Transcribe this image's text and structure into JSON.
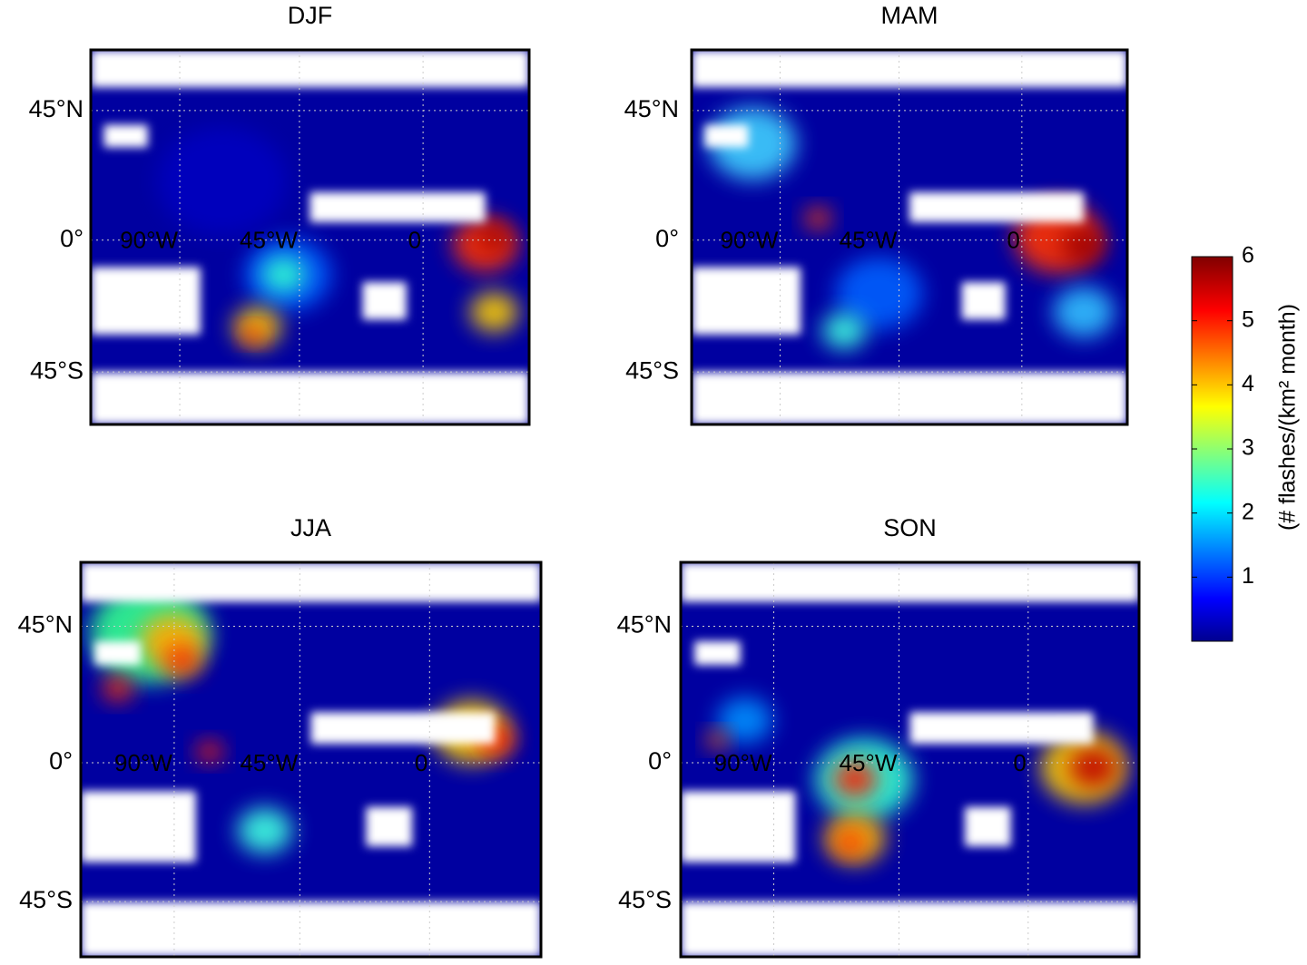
{
  "panels": [
    {
      "title": "DJF"
    },
    {
      "title": "MAM"
    },
    {
      "title": "JJA"
    },
    {
      "title": "SON"
    }
  ],
  "latitude_labels": [
    "45°N",
    "0°",
    "45°S"
  ],
  "longitude_labels": [
    "90°W",
    "45°W",
    "0"
  ],
  "colorbar": {
    "label": "(# flashes/(km² month)",
    "lim": [
      0,
      6
    ],
    "ticks": [
      1,
      2,
      3,
      4,
      5,
      6
    ]
  }
}
